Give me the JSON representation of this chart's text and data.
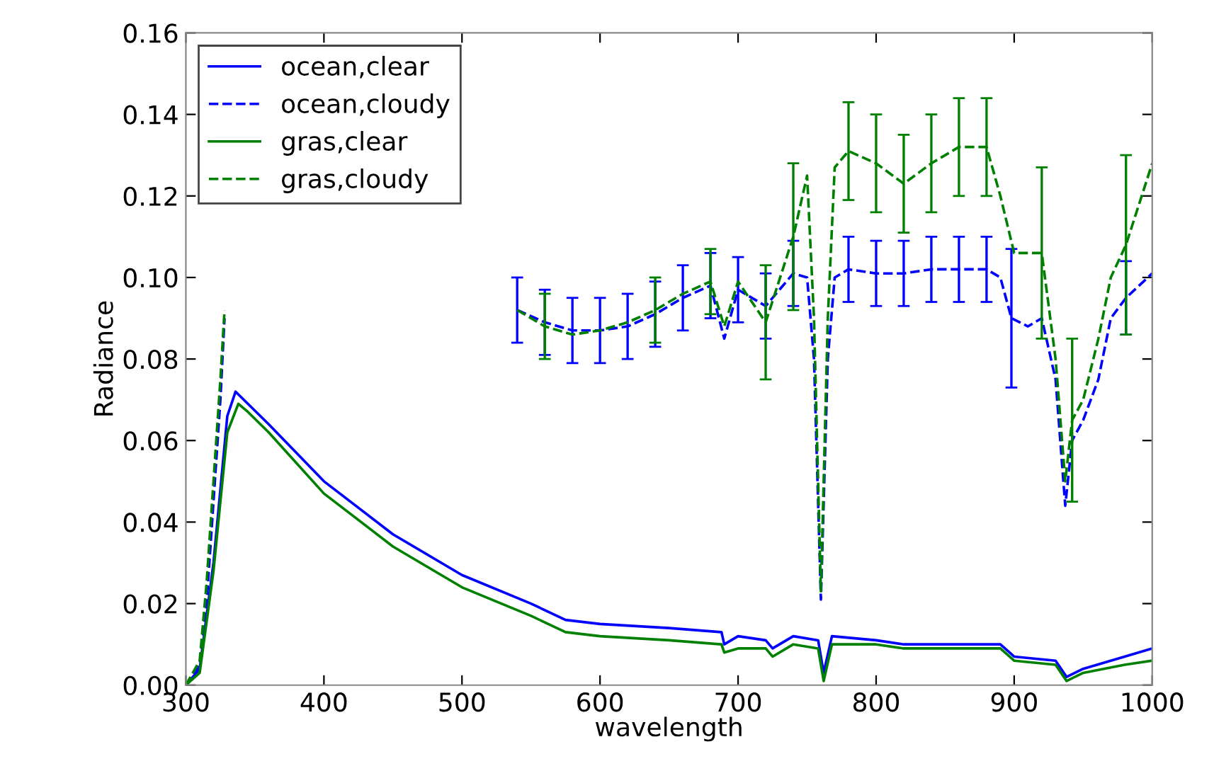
{
  "chart_data": {
    "type": "line",
    "xlabel": "wavelength",
    "ylabel": "Radiance",
    "xlim": [
      300,
      1000
    ],
    "xticks": [
      300,
      400,
      500,
      600,
      700,
      800,
      900,
      1000
    ],
    "ylim": [
      0.0,
      0.16
    ],
    "yticks": [
      {
        "value": 0.0,
        "label": "0.00"
      },
      {
        "value": 0.02,
        "label": "0.02"
      },
      {
        "value": 0.04,
        "label": "0.04"
      },
      {
        "value": 0.06,
        "label": "0.06"
      },
      {
        "value": 0.08,
        "label": "0.08"
      },
      {
        "value": 0.1,
        "label": "0.10"
      },
      {
        "value": 0.12,
        "label": "0.12"
      },
      {
        "value": 0.14,
        "label": "0.14"
      },
      {
        "value": 0.16,
        "label": "0.16"
      }
    ],
    "grid": false,
    "legend": "top left",
    "marker": "none",
    "series": [
      {
        "name": "ocean,clear",
        "color": "#0000ff",
        "line_style": "solid",
        "x": [
          300,
          310,
          320,
          330,
          336,
          345,
          360,
          400,
          450,
          500,
          550,
          575,
          600,
          650,
          688,
          690,
          700,
          720,
          725,
          740,
          758,
          762,
          768,
          800,
          820,
          850,
          890,
          900,
          930,
          938,
          950,
          980,
          1000
        ],
        "values": [
          0.0,
          0.004,
          0.03,
          0.066,
          0.072,
          0.069,
          0.064,
          0.05,
          0.037,
          0.027,
          0.02,
          0.016,
          0.015,
          0.014,
          0.013,
          0.01,
          0.012,
          0.011,
          0.009,
          0.012,
          0.011,
          0.003,
          0.012,
          0.011,
          0.01,
          0.01,
          0.01,
          0.007,
          0.006,
          0.002,
          0.004,
          0.007,
          0.009
        ]
      },
      {
        "name": "ocean,cloudy",
        "color": "#0000ff",
        "line_style": "dashed",
        "x": [
          300,
          310,
          315,
          320,
          325,
          328,
          400,
          540,
          560,
          580,
          600,
          620,
          640,
          660,
          680,
          690,
          700,
          720,
          740,
          750,
          755,
          760,
          765,
          770,
          780,
          800,
          820,
          840,
          860,
          880,
          890,
          898,
          910,
          920,
          930,
          937,
          942,
          950,
          961,
          970,
          981,
          1000
        ],
        "values": [
          0.0,
          0.005,
          0.02,
          0.045,
          0.07,
          0.09,
          null,
          0.092,
          0.089,
          0.087,
          0.087,
          0.088,
          0.091,
          0.095,
          0.098,
          0.085,
          0.097,
          0.093,
          0.101,
          0.1,
          0.08,
          0.021,
          0.08,
          0.1,
          0.102,
          0.101,
          0.101,
          0.102,
          0.102,
          0.102,
          0.1,
          0.09,
          0.088,
          0.09,
          0.075,
          0.044,
          0.06,
          0.065,
          0.075,
          0.09,
          0.095,
          0.101
        ],
        "errors": [
          null,
          null,
          null,
          null,
          null,
          null,
          null,
          0.008,
          0.008,
          0.008,
          0.008,
          0.008,
          0.008,
          0.008,
          0.008,
          null,
          0.008,
          0.008,
          0.008,
          null,
          null,
          null,
          null,
          null,
          0.008,
          0.008,
          0.008,
          0.008,
          0.008,
          0.008,
          null,
          0.017,
          null,
          null,
          null,
          null,
          null,
          null,
          null,
          null,
          0.009,
          null
        ]
      },
      {
        "name": "gras,clear",
        "color": "#008000",
        "line_style": "solid",
        "x": [
          300,
          310,
          320,
          330,
          338,
          345,
          360,
          400,
          450,
          500,
          550,
          575,
          600,
          650,
          688,
          690,
          700,
          720,
          725,
          740,
          758,
          762,
          768,
          800,
          820,
          850,
          890,
          900,
          930,
          938,
          950,
          980,
          1000
        ],
        "values": [
          0.0,
          0.003,
          0.028,
          0.062,
          0.069,
          0.067,
          0.062,
          0.047,
          0.034,
          0.024,
          0.017,
          0.013,
          0.012,
          0.011,
          0.01,
          0.008,
          0.009,
          0.009,
          0.007,
          0.01,
          0.009,
          0.001,
          0.01,
          0.01,
          0.009,
          0.009,
          0.009,
          0.006,
          0.005,
          0.001,
          0.003,
          0.005,
          0.006
        ]
      },
      {
        "name": "gras,cloudy",
        "color": "#008000",
        "line_style": "dashed",
        "x": [
          300,
          310,
          315,
          320,
          325,
          328,
          400,
          540,
          560,
          580,
          600,
          620,
          640,
          660,
          680,
          690,
          700,
          720,
          740,
          750,
          755,
          760,
          765,
          770,
          780,
          800,
          820,
          840,
          860,
          880,
          890,
          900,
          920,
          930,
          937,
          942,
          950,
          961,
          970,
          981,
          1000
        ],
        "values": [
          0.0,
          0.006,
          0.025,
          0.05,
          0.075,
          0.092,
          null,
          0.092,
          0.088,
          0.086,
          0.087,
          0.089,
          0.092,
          0.096,
          0.099,
          0.088,
          0.099,
          0.089,
          0.11,
          0.125,
          0.09,
          0.023,
          0.09,
          0.127,
          0.131,
          0.128,
          0.123,
          0.128,
          0.132,
          0.132,
          0.12,
          0.106,
          0.106,
          0.08,
          0.05,
          0.065,
          0.07,
          0.085,
          0.1,
          0.108,
          0.128
        ],
        "errors": [
          null,
          null,
          null,
          null,
          null,
          null,
          null,
          null,
          0.008,
          null,
          null,
          null,
          0.008,
          null,
          0.008,
          null,
          null,
          0.014,
          0.018,
          null,
          null,
          null,
          null,
          null,
          0.012,
          0.012,
          0.012,
          0.012,
          0.012,
          0.012,
          null,
          null,
          0.021,
          null,
          null,
          0.02,
          null,
          null,
          null,
          0.022,
          null
        ]
      }
    ]
  }
}
